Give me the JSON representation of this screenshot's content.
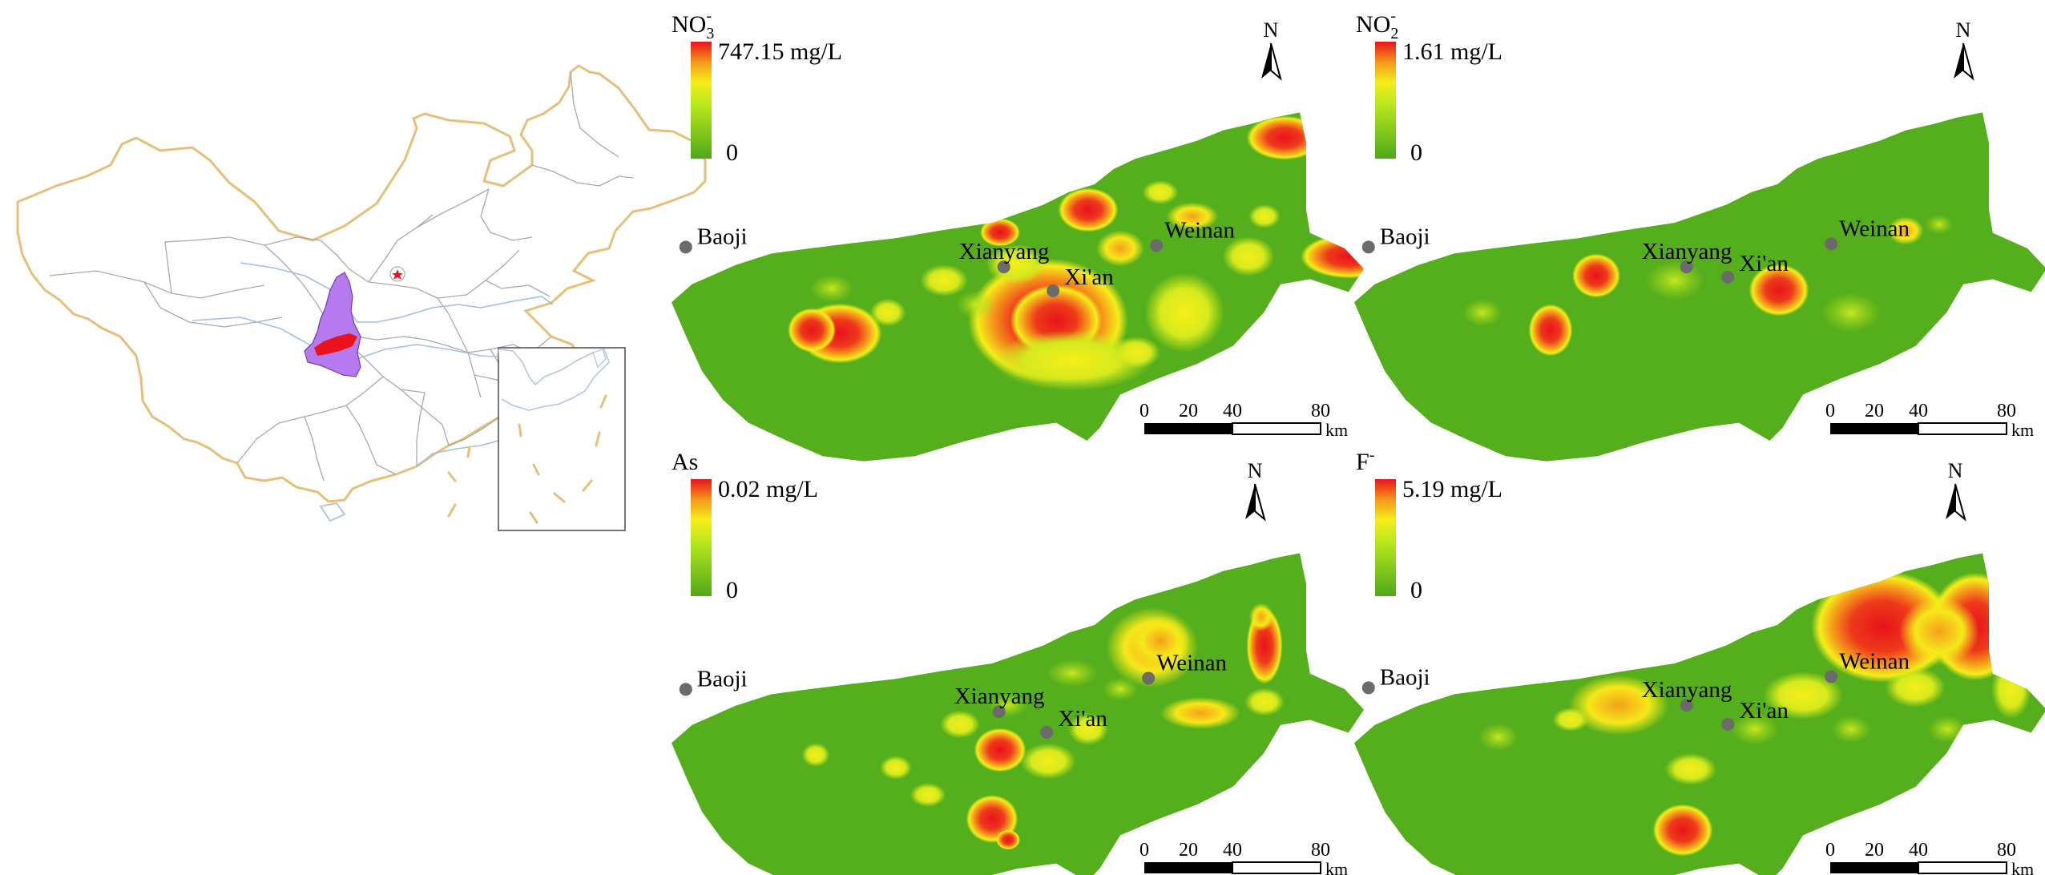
{
  "overview": {
    "description_icon": "china-outline-map-icon",
    "inset_icon": "south-china-sea-inset-icon",
    "study_area_color": "#b57bee",
    "highlight_color": "#e8131b",
    "border_color": "#e8bf7a"
  },
  "north_label": "N",
  "scale_bar": {
    "ticks": [
      "0",
      "20",
      "40",
      "80"
    ],
    "unit": "km"
  },
  "cities": [
    "Baoji",
    "Xianyang",
    "Xi'an",
    "Weinan"
  ],
  "panels": [
    {
      "id": "no3",
      "param_main": "NO",
      "param_sub": "3",
      "param_sup": "-",
      "max": "747.15",
      "unit": "mg/L",
      "min": "0"
    },
    {
      "id": "no2",
      "param_main": "NO",
      "param_sub": "2",
      "param_sup": "-",
      "max": "1.61",
      "unit": "mg/L",
      "min": "0"
    },
    {
      "id": "as",
      "param_main": "As",
      "param_sub": "",
      "param_sup": "",
      "max": "0.02",
      "unit": "mg/L",
      "min": "0"
    },
    {
      "id": "f",
      "param_main": "F",
      "param_sub": "",
      "param_sup": "-",
      "max": "5.19",
      "unit": "mg/L",
      "min": "0"
    }
  ],
  "colors": {
    "low": "#4fa81a",
    "mid": "#f5ee1a",
    "high": "#e8131b",
    "city_dot": "#6b6b6b"
  }
}
